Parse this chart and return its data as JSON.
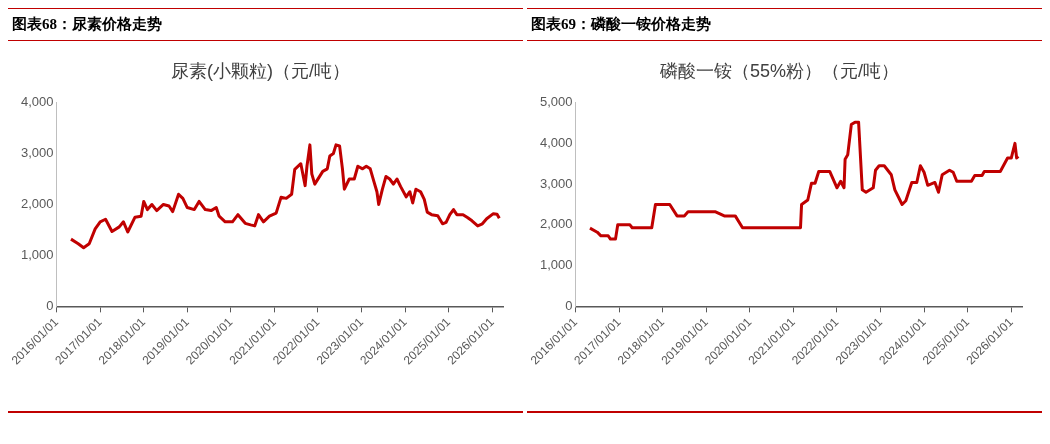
{
  "chart_data": [
    {
      "type": "line",
      "title": "图表68：尿素价格走势",
      "subtitle": "尿素(小颗粒)（元/吨）",
      "xlim": [
        "2016-01-01",
        "2026-04-01"
      ],
      "xticks": [
        {
          "value": "2016-01-01",
          "label": "2016/01/01"
        },
        {
          "value": "2017-01-01",
          "label": "2017/01/01"
        },
        {
          "value": "2018-01-01",
          "label": "2018/01/01"
        },
        {
          "value": "2019-01-01",
          "label": "2019/01/01"
        },
        {
          "value": "2020-01-01",
          "label": "2020/01/01"
        },
        {
          "value": "2021-01-01",
          "label": "2021/01/01"
        },
        {
          "value": "2022-01-01",
          "label": "2022/01/01"
        },
        {
          "value": "2023-01-01",
          "label": "2023/01/01"
        },
        {
          "value": "2024-01-01",
          "label": "2024/01/01"
        },
        {
          "value": "2025-01-01",
          "label": "2025/01/01"
        },
        {
          "value": "2026-01-01",
          "label": "2026/01/01"
        }
      ],
      "ylim": [
        0,
        4000
      ],
      "yticks": [
        {
          "value": 0,
          "label": "0"
        },
        {
          "value": 1000,
          "label": "1,000"
        },
        {
          "value": 2000,
          "label": "2,000"
        },
        {
          "value": 3000,
          "label": "3,000"
        },
        {
          "value": 4000,
          "label": "4,000"
        }
      ],
      "grid": false,
      "legend": false,
      "marker": "none",
      "line_style": "solid",
      "series": [
        {
          "color": "#c00000",
          "x": [
            "2016-05-01",
            "2016-07-01",
            "2016-08-15",
            "2016-10-01",
            "2016-11-20",
            "2017-01-01",
            "2017-02-15",
            "2017-04-10",
            "2017-06-10",
            "2017-07-15",
            "2017-08-20",
            "2017-10-20",
            "2017-12-10",
            "2018-01-01",
            "2018-02-01",
            "2018-03-10",
            "2018-04-20",
            "2018-06-15",
            "2018-08-01",
            "2018-09-01",
            "2018-10-20",
            "2018-11-25",
            "2019-01-01",
            "2019-03-01",
            "2019-04-10",
            "2019-06-01",
            "2019-07-20",
            "2019-09-01",
            "2019-09-25",
            "2019-11-15",
            "2020-01-15",
            "2020-03-01",
            "2020-05-01",
            "2020-06-15",
            "2020-07-20",
            "2020-08-20",
            "2020-10-01",
            "2020-11-20",
            "2021-01-15",
            "2021-02-25",
            "2021-04-10",
            "2021-05-25",
            "2021-06-20",
            "2021-08-10",
            "2021-09-15",
            "2021-10-01",
            "2021-10-25",
            "2021-11-10",
            "2021-12-05",
            "2022-02-10",
            "2022-03-20",
            "2022-04-10",
            "2022-05-10",
            "2022-06-01",
            "2022-07-01",
            "2022-07-25",
            "2022-08-10",
            "2022-09-20",
            "2022-11-01",
            "2022-12-01",
            "2023-01-10",
            "2023-02-10",
            "2023-03-15",
            "2023-04-15",
            "2023-05-10",
            "2023-05-25",
            "2023-06-25",
            "2023-07-25",
            "2023-08-25",
            "2023-09-25",
            "2023-10-25",
            "2023-11-25",
            "2024-01-10",
            "2024-02-10",
            "2024-03-05",
            "2024-04-01",
            "2024-05-10",
            "2024-06-10",
            "2024-07-05",
            "2024-08-10",
            "2024-10-01",
            "2024-11-10",
            "2024-12-10",
            "2025-01-10",
            "2025-02-10",
            "2025-03-10",
            "2025-05-01",
            "2025-06-10",
            "2025-07-15",
            "2025-09-01",
            "2025-10-10",
            "2025-11-15",
            "2026-01-10",
            "2026-02-10",
            "2026-03-01"
          ],
          "values": [
            1320,
            1230,
            1150,
            1230,
            1520,
            1660,
            1710,
            1470,
            1560,
            1660,
            1460,
            1750,
            1770,
            2060,
            1900,
            2000,
            1880,
            2000,
            1970,
            1860,
            2200,
            2120,
            1940,
            1900,
            2060,
            1900,
            1880,
            1940,
            1770,
            1660,
            1660,
            1800,
            1630,
            1600,
            1580,
            1800,
            1660,
            1770,
            1830,
            2140,
            2120,
            2200,
            2690,
            2800,
            2370,
            2760,
            3170,
            2600,
            2400,
            2650,
            2700,
            2950,
            3000,
            3170,
            3150,
            2700,
            2300,
            2500,
            2500,
            2750,
            2700,
            2750,
            2700,
            2450,
            2250,
            2000,
            2300,
            2550,
            2500,
            2400,
            2500,
            2350,
            2150,
            2250,
            2030,
            2300,
            2250,
            2100,
            1850,
            1800,
            1780,
            1620,
            1650,
            1800,
            1900,
            1800,
            1800,
            1740,
            1680,
            1580,
            1620,
            1720,
            1820,
            1810,
            1730
          ]
        }
      ]
    },
    {
      "type": "line",
      "title": "图表69：磷酸一铵价格走势",
      "subtitle": "磷酸一铵（55%粉）（元/吨）",
      "xlim": [
        "2016-01-01",
        "2026-04-01"
      ],
      "xticks": [
        {
          "value": "2016-01-01",
          "label": "2016/01/01"
        },
        {
          "value": "2017-01-01",
          "label": "2017/01/01"
        },
        {
          "value": "2018-01-01",
          "label": "2018/01/01"
        },
        {
          "value": "2019-01-01",
          "label": "2019/01/01"
        },
        {
          "value": "2020-01-01",
          "label": "2020/01/01"
        },
        {
          "value": "2021-01-01",
          "label": "2021/01/01"
        },
        {
          "value": "2022-01-01",
          "label": "2022/01/01"
        },
        {
          "value": "2023-01-01",
          "label": "2023/01/01"
        },
        {
          "value": "2024-01-01",
          "label": "2024/01/01"
        },
        {
          "value": "2025-01-01",
          "label": "2025/01/01"
        },
        {
          "value": "2026-01-01",
          "label": "2026/01/01"
        }
      ],
      "ylim": [
        0,
        5000
      ],
      "yticks": [
        {
          "value": 0,
          "label": "0"
        },
        {
          "value": 1000,
          "label": "1,000"
        },
        {
          "value": 2000,
          "label": "2,000"
        },
        {
          "value": 3000,
          "label": "3,000"
        },
        {
          "value": 4000,
          "label": "4,000"
        },
        {
          "value": 5000,
          "label": "5,000"
        }
      ],
      "grid": false,
      "legend": false,
      "marker": "none",
      "line_style": "solid",
      "series": [
        {
          "color": "#c00000",
          "x": [
            "2016-05-01",
            "2016-07-01",
            "2016-08-01",
            "2016-10-01",
            "2016-10-20",
            "2016-12-01",
            "2016-12-20",
            "2017-04-01",
            "2017-04-20",
            "2017-10-01",
            "2017-11-01",
            "2018-03-01",
            "2018-05-01",
            "2018-07-01",
            "2018-08-01",
            "2019-03-20",
            "2019-06-01",
            "2019-09-01",
            "2019-11-01",
            "2021-03-01",
            "2021-03-10",
            "2021-05-01",
            "2021-06-01",
            "2021-07-01",
            "2021-08-01",
            "2021-11-01",
            "2022-01-01",
            "2022-02-01",
            "2022-03-01",
            "2022-03-10",
            "2022-04-01",
            "2022-05-01",
            "2022-06-01",
            "2022-07-01",
            "2022-08-01",
            "2022-09-01",
            "2022-11-01",
            "2022-11-20",
            "2022-12-20",
            "2023-02-01",
            "2023-04-01",
            "2023-05-01",
            "2023-07-01",
            "2023-08-01",
            "2023-09-20",
            "2023-11-01",
            "2023-12-01",
            "2024-01-01",
            "2024-02-01",
            "2024-04-01",
            "2024-05-01",
            "2024-06-01",
            "2024-08-01",
            "2024-09-01",
            "2024-10-01",
            "2025-02-01",
            "2025-03-01",
            "2025-05-01",
            "2025-05-20",
            "2025-10-01",
            "2025-12-01",
            "2026-01-01",
            "2026-02-01",
            "2026-02-15",
            "2026-03-01"
          ],
          "values": [
            1920,
            1820,
            1730,
            1730,
            1650,
            1650,
            2000,
            2000,
            1930,
            1930,
            2500,
            2500,
            2220,
            2220,
            2320,
            2320,
            2220,
            2220,
            1930,
            1930,
            2500,
            2610,
            3020,
            3020,
            3310,
            3310,
            2910,
            3070,
            2910,
            3610,
            3720,
            4460,
            4520,
            4520,
            2860,
            2800,
            2910,
            3340,
            3450,
            3450,
            3230,
            2860,
            2500,
            2590,
            3040,
            3040,
            3450,
            3290,
            2970,
            3040,
            2800,
            3230,
            3340,
            3290,
            3070,
            3070,
            3210,
            3210,
            3310,
            3310,
            3640,
            3640,
            4000,
            3640,
            3680
          ]
        }
      ]
    }
  ]
}
